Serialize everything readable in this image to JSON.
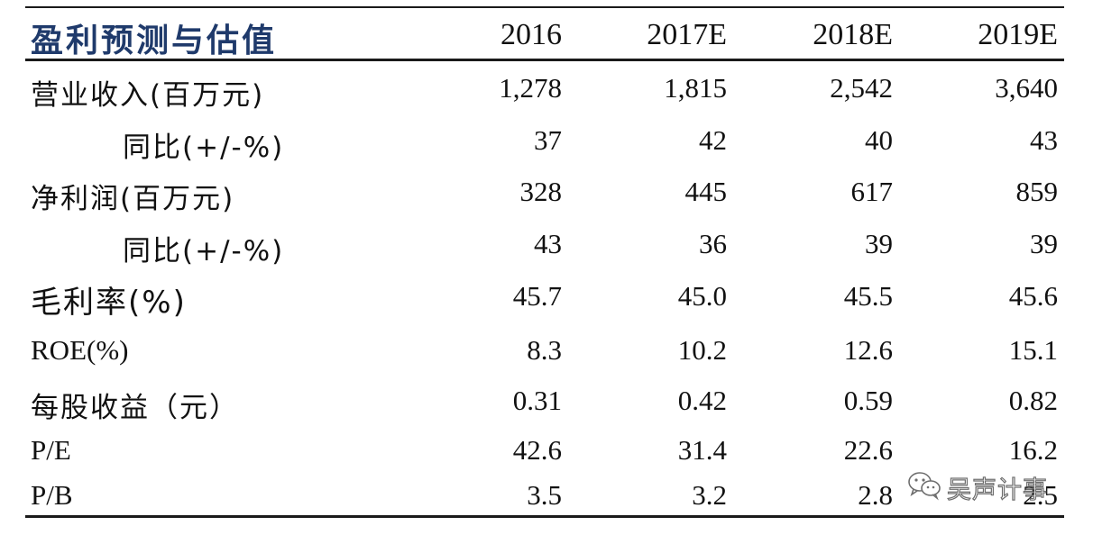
{
  "header": {
    "title": "盈利预测与估值",
    "years": [
      "2016",
      "2017E",
      "2018E",
      "2019E"
    ]
  },
  "rows": [
    {
      "label": "营业收入(百万元)",
      "values": [
        "1,278",
        "1,815",
        "2,542",
        "3,640"
      ]
    },
    {
      "label": "同比(+/-%)",
      "values": [
        "37",
        "42",
        "40",
        "43"
      ]
    },
    {
      "label": "净利润(百万元)",
      "values": [
        "328",
        "445",
        "617",
        "859"
      ]
    },
    {
      "label": "同比(+/-%)",
      "values": [
        "43",
        "36",
        "39",
        "39"
      ]
    },
    {
      "label": "毛利率(%)",
      "values": [
        "45.7",
        "45.0",
        "45.5",
        "45.6"
      ]
    },
    {
      "label": "ROE(%)",
      "values": [
        "8.3",
        "10.2",
        "12.6",
        "15.1"
      ]
    },
    {
      "label": "每股收益（元）",
      "values": [
        "0.31",
        "0.42",
        "0.59",
        "0.82"
      ]
    },
    {
      "label": "P/E",
      "values": [
        "42.6",
        "31.4",
        "22.6",
        "16.2"
      ]
    },
    {
      "label": "P/B",
      "values": [
        "3.5",
        "3.2",
        "2.8",
        "2.5"
      ]
    }
  ],
  "watermark": {
    "text": "吴声计事",
    "icon": "wechat-icon"
  }
}
